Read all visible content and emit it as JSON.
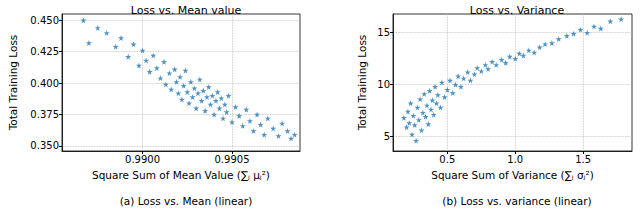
{
  "chart_data": [
    {
      "type": "scatter",
      "title": "Loss vs. Mean value",
      "x_label": "Square Sum of Mean Value (∑ⱼ μⱼ²)",
      "y_label": "Total Training Loss",
      "caption": "(a) Loss vs. Mean (linear)",
      "color": "#1f77b4",
      "marker": "star",
      "grid": true,
      "xlim": [
        0.98955,
        0.99088
      ],
      "ylim": [
        0.346,
        0.455
      ],
      "xticks": [
        {
          "value": 0.99,
          "label": "0.9900"
        },
        {
          "value": 0.9905,
          "label": "0.9905"
        }
      ],
      "yticks": [
        {
          "value": 0.35,
          "label": "0.350"
        },
        0.375,
        {
          "value": 0.4,
          "label": "0.400"
        },
        0.425,
        {
          "value": 0.45,
          "label": "0.450"
        }
      ],
      "x": [
        0.98967,
        0.9897,
        0.98975,
        0.9898,
        0.98985,
        0.98988,
        0.98992,
        0.98995,
        0.98998,
        0.99,
        0.99002,
        0.99004,
        0.99006,
        0.99008,
        0.9901,
        0.99012,
        0.99013,
        0.99015,
        0.99016,
        0.99018,
        0.99019,
        0.9902,
        0.99021,
        0.99022,
        0.99023,
        0.99024,
        0.99025,
        0.99026,
        0.99027,
        0.99028,
        0.99029,
        0.9903,
        0.99031,
        0.99032,
        0.99033,
        0.99034,
        0.99035,
        0.99036,
        0.99037,
        0.99038,
        0.99039,
        0.9904,
        0.99041,
        0.99042,
        0.99043,
        0.99044,
        0.99045,
        0.99046,
        0.99047,
        0.99048,
        0.9905,
        0.99052,
        0.99054,
        0.99056,
        0.99058,
        0.9906,
        0.99062,
        0.99064,
        0.99066,
        0.99068,
        0.9907,
        0.99073,
        0.99076,
        0.99078,
        0.99081,
        0.99083,
        0.99085
      ],
      "values": [
        0.45,
        0.432,
        0.444,
        0.44,
        0.429,
        0.436,
        0.421,
        0.431,
        0.414,
        0.426,
        0.418,
        0.409,
        0.422,
        0.412,
        0.404,
        0.417,
        0.399,
        0.408,
        0.395,
        0.411,
        0.401,
        0.392,
        0.405,
        0.387,
        0.398,
        0.41,
        0.393,
        0.384,
        0.401,
        0.389,
        0.396,
        0.38,
        0.392,
        0.403,
        0.386,
        0.394,
        0.378,
        0.389,
        0.397,
        0.383,
        0.39,
        0.375,
        0.386,
        0.393,
        0.38,
        0.388,
        0.372,
        0.383,
        0.377,
        0.39,
        0.369,
        0.381,
        0.374,
        0.366,
        0.379,
        0.37,
        0.362,
        0.375,
        0.367,
        0.359,
        0.372,
        0.364,
        0.358,
        0.368,
        0.362,
        0.356,
        0.359
      ]
    },
    {
      "type": "scatter",
      "title": "Loss vs. Variance",
      "x_label": "Square Sum of Variance (∑ⱼ σⱼ²)",
      "y_label": "Total Training Loss",
      "caption": "(b) Loss vs. variance (linear)",
      "color": "#1f77b4",
      "marker": "star",
      "grid": true,
      "xlim": [
        0.1,
        1.86
      ],
      "ylim": [
        3.6,
        16.8
      ],
      "xticks": [
        0.5,
        {
          "value": 1,
          "label": "1.0"
        },
        1.5
      ],
      "yticks": [
        5,
        10,
        15
      ],
      "x": [
        0.18,
        0.2,
        0.21,
        0.22,
        0.23,
        0.24,
        0.25,
        0.26,
        0.27,
        0.28,
        0.29,
        0.3,
        0.31,
        0.32,
        0.33,
        0.34,
        0.35,
        0.36,
        0.37,
        0.38,
        0.39,
        0.4,
        0.41,
        0.42,
        0.43,
        0.45,
        0.46,
        0.48,
        0.5,
        0.52,
        0.54,
        0.56,
        0.58,
        0.6,
        0.62,
        0.65,
        0.67,
        0.7,
        0.72,
        0.75,
        0.78,
        0.8,
        0.83,
        0.86,
        0.9,
        0.93,
        0.96,
        1.0,
        1.03,
        1.06,
        1.1,
        1.14,
        1.18,
        1.22,
        1.27,
        1.32,
        1.38,
        1.43,
        1.48,
        1.53,
        1.58,
        1.63,
        1.7,
        1.78
      ],
      "values": [
        6.8,
        5.9,
        7.4,
        6.3,
        8.2,
        5.2,
        7.0,
        6.1,
        4.6,
        7.8,
        6.6,
        8.6,
        5.6,
        7.3,
        9.1,
        6.9,
        8.0,
        6.2,
        9.4,
        7.6,
        8.5,
        7.1,
        9.8,
        8.2,
        9.0,
        7.8,
        10.2,
        8.8,
        9.5,
        10.4,
        9.2,
        10.0,
        10.8,
        9.8,
        10.6,
        11.2,
        10.4,
        11.0,
        11.6,
        11.3,
        11.9,
        11.5,
        12.2,
        11.9,
        12.4,
        12.1,
        12.7,
        12.5,
        13.0,
        12.8,
        13.3,
        13.1,
        13.6,
        13.9,
        14.0,
        14.4,
        14.7,
        14.9,
        15.3,
        15.0,
        15.6,
        15.4,
        16.1,
        16.3
      ]
    }
  ]
}
